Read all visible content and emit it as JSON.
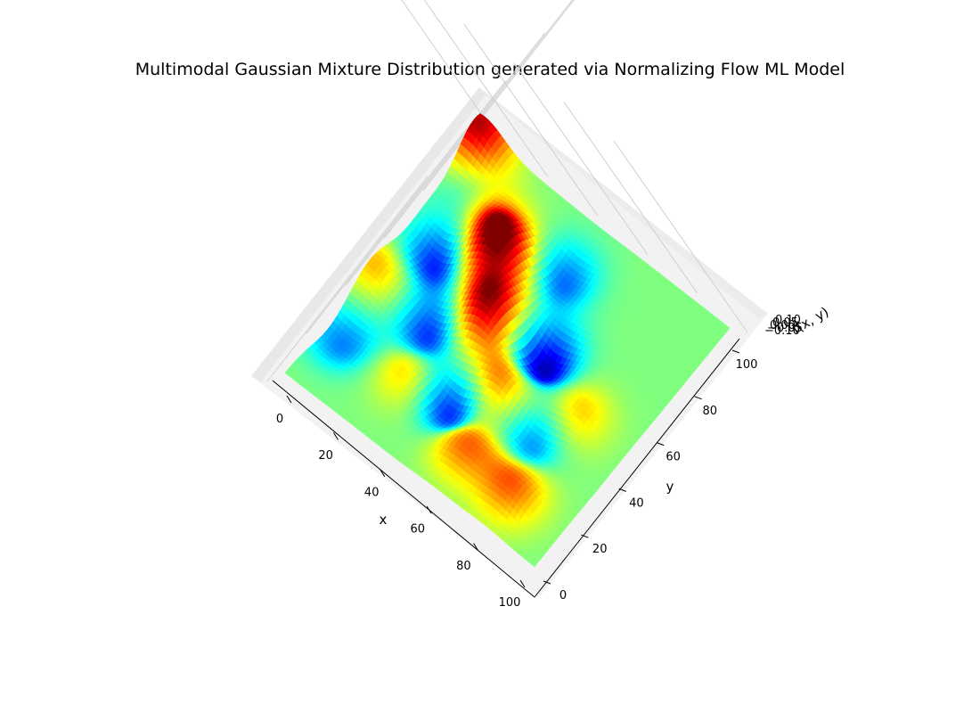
{
  "chart_data": {
    "type": "surface3d",
    "title": "Multimodal Gaussian Mixture Distribution generated via Normalizing Flow ML Model",
    "xlabel": "x",
    "ylabel": "y",
    "zlabel": "f(x, y)",
    "xlim": [
      0,
      100
    ],
    "ylim": [
      0,
      100
    ],
    "x_ticks": [
      "0",
      "20",
      "40",
      "60",
      "80",
      "100"
    ],
    "y_ticks": [
      "0",
      "20",
      "40",
      "60",
      "80",
      "100"
    ],
    "z_ticks": [
      "−0.10",
      "−0.05",
      "0.00",
      "0.05",
      "0.10"
    ],
    "colormap": "jet",
    "grid": true,
    "view": "top-down",
    "peaks": [
      {
        "x": 2,
        "y": 96,
        "z": 0.12
      },
      {
        "x": 30,
        "y": 74,
        "z": 0.11
      },
      {
        "x": 38,
        "y": 52,
        "z": 0.08
      },
      {
        "x": 55,
        "y": 40,
        "z": 0.08
      },
      {
        "x": 60,
        "y": 16,
        "z": 0.07
      },
      {
        "x": 80,
        "y": 14,
        "z": 0.07
      },
      {
        "x": 22,
        "y": 68,
        "z": 0.06
      },
      {
        "x": 40,
        "y": 58,
        "z": 0.06
      },
      {
        "x": 14,
        "y": 84,
        "z": 0.06
      },
      {
        "x": 33,
        "y": 24,
        "z": 0.06
      },
      {
        "x": 80,
        "y": 46,
        "z": 0.05
      },
      {
        "x": 3,
        "y": 44,
        "z": 0.05
      }
    ],
    "troughs": [
      {
        "x": 58,
        "y": 57,
        "z": -0.12
      },
      {
        "x": 14,
        "y": 62,
        "z": -0.11
      },
      {
        "x": 45,
        "y": 26,
        "z": -0.11
      },
      {
        "x": 26,
        "y": 42,
        "z": -0.09
      },
      {
        "x": 73,
        "y": 34,
        "z": -0.07
      },
      {
        "x": 9,
        "y": 85,
        "z": -0.07
      },
      {
        "x": 47,
        "y": 81,
        "z": -0.07
      },
      {
        "x": 6,
        "y": 22,
        "z": -0.06
      }
    ]
  }
}
